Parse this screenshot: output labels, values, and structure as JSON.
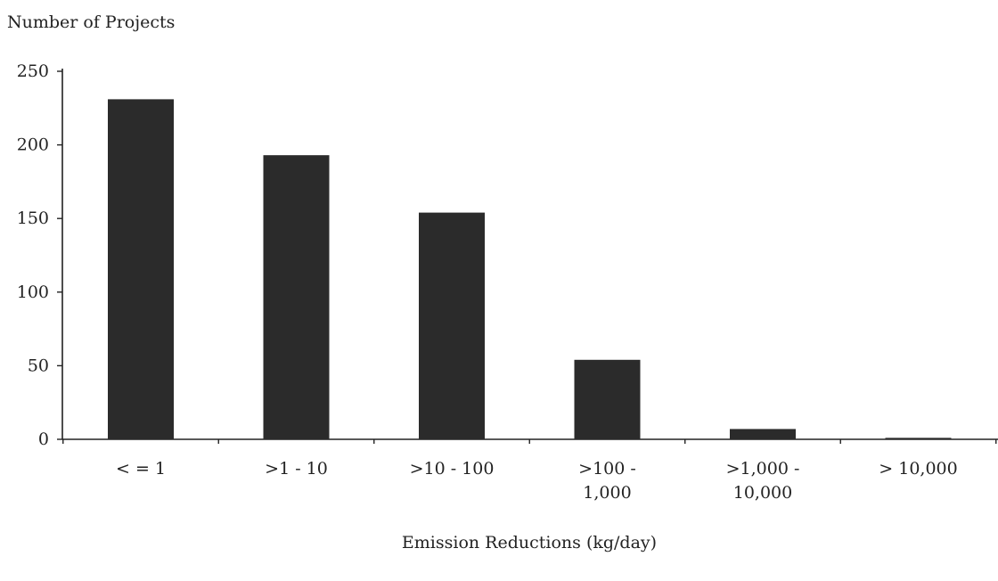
{
  "chart_data": {
    "type": "bar",
    "title": "",
    "ylabel": "Number of Projects",
    "xlabel": "Emission Reductions (kg/day)",
    "categories": [
      [
        "< = 1"
      ],
      [
        ">1 - 10"
      ],
      [
        ">10 - 100"
      ],
      [
        ">100 -",
        "1,000"
      ],
      [
        ">1,000 -",
        "10,000"
      ],
      [
        "> 10,000"
      ]
    ],
    "values": [
      231,
      193,
      154,
      54,
      7,
      1
    ],
    "yticks": [
      0,
      50,
      100,
      150,
      200,
      250
    ],
    "ylim": [
      0,
      250
    ],
    "grid": false,
    "bar_color": "#2b2b2b"
  }
}
